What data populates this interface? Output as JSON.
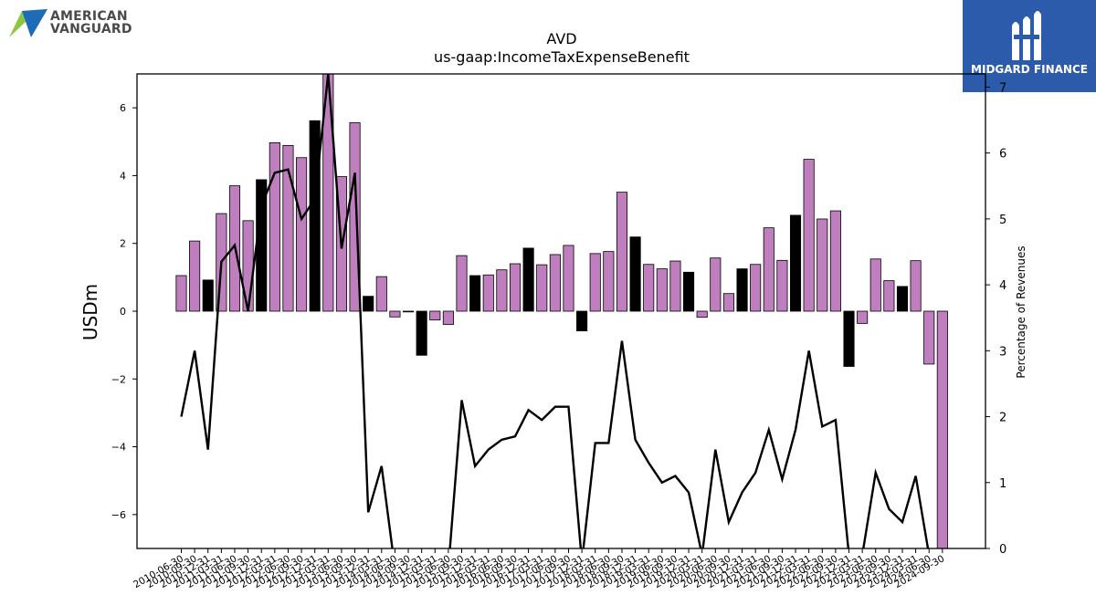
{
  "branding": {
    "company_logo_text_line1": "AMERICAN",
    "company_logo_text_line2": "VANGUARD",
    "publisher_logo_text": "MIDGARD FINANCE"
  },
  "chart_data": {
    "type": "bar",
    "title": "AVD",
    "subtitle": "us-gaap:IncomeTaxExpenseBenefit",
    "ylabel": "USDm",
    "y2label": "Percentage of Revenues",
    "ylim": [
      -7,
      7
    ],
    "y2lim": [
      0,
      7.2
    ],
    "yticks": [
      -6,
      -4,
      -2,
      0,
      2,
      4,
      6
    ],
    "y2ticks": [
      0,
      1,
      2,
      3,
      4,
      5,
      6,
      7
    ],
    "colors": {
      "quarter_bar": "#bf7fbf",
      "q4_bar": "#000000",
      "line": "#000000"
    },
    "categories": [
      "2010-06-30",
      "2010-09-30",
      "2010-12-31",
      "2011-03-31",
      "2011-06-30",
      "2011-09-30",
      "2011-12-31",
      "2012-03-31",
      "2012-06-30",
      "2012-09-30",
      "2012-12-31",
      "2013-03-31",
      "2013-06-30",
      "2013-09-30",
      "2013-12-31",
      "2014-03-31",
      "2014-06-30",
      "2014-09-30",
      "2014-12-31",
      "2015-03-31",
      "2015-06-30",
      "2015-09-30",
      "2015-12-31",
      "2016-03-31",
      "2016-06-30",
      "2016-09-30",
      "2016-12-31",
      "2017-03-31",
      "2017-06-30",
      "2017-09-30",
      "2017-12-31",
      "2018-03-31",
      "2018-06-30",
      "2018-09-30",
      "2018-12-31",
      "2019-03-31",
      "2019-06-30",
      "2019-09-30",
      "2019-12-31",
      "2020-03-31",
      "2020-06-30",
      "2020-09-30",
      "2020-12-31",
      "2021-03-31",
      "2021-06-30",
      "2021-09-30",
      "2021-12-31",
      "2022-03-31",
      "2022-06-30",
      "2022-09-30",
      "2022-12-31",
      "2023-03-31",
      "2023-06-30",
      "2023-09-30",
      "2023-12-31",
      "2024-03-31",
      "2024-06-30",
      "2024-09-30"
    ],
    "series": [
      {
        "kind": "bar",
        "values": [
          1.05,
          2.07,
          0.92,
          2.88,
          3.7,
          2.67,
          3.88,
          4.97,
          4.89,
          4.53,
          5.62,
          7.2,
          3.97,
          5.56,
          0.44,
          1.02,
          -0.17,
          -0.02,
          -1.3,
          -0.26,
          -0.39,
          1.64,
          1.05,
          1.07,
          1.22,
          1.4,
          1.86,
          1.37,
          1.67,
          1.94,
          -0.58,
          1.7,
          1.76,
          3.51,
          2.19,
          1.38,
          1.25,
          1.48,
          1.15,
          -0.18,
          1.57,
          0.52,
          1.25,
          1.38,
          2.46,
          1.5,
          2.83,
          4.48,
          2.72,
          2.96,
          -1.63,
          -0.36,
          1.54,
          0.9,
          0.73,
          1.49,
          -1.56,
          -7.2
        ],
        "q4": [
          false,
          false,
          true,
          false,
          false,
          false,
          true,
          false,
          false,
          false,
          true,
          false,
          false,
          false,
          true,
          false,
          false,
          false,
          true,
          false,
          false,
          false,
          true,
          false,
          false,
          false,
          true,
          false,
          false,
          false,
          true,
          false,
          false,
          false,
          true,
          false,
          false,
          false,
          true,
          false,
          false,
          false,
          true,
          false,
          false,
          false,
          true,
          false,
          false,
          false,
          true,
          false,
          false,
          false,
          true,
          false,
          false,
          false
        ]
      },
      {
        "kind": "line",
        "axis": "right",
        "values": [
          2.0,
          3.0,
          1.5,
          4.35,
          4.6,
          3.6,
          5.2,
          5.7,
          5.75,
          5.0,
          5.3,
          7.2,
          4.55,
          5.7,
          0.55,
          1.25,
          -0.3,
          -0.3,
          -0.3,
          -0.3,
          -0.3,
          2.25,
          1.25,
          1.5,
          1.65,
          1.7,
          2.1,
          1.95,
          2.15,
          2.15,
          -0.2,
          1.6,
          1.6,
          3.15,
          1.65,
          1.3,
          1.0,
          1.1,
          0.85,
          -0.1,
          1.5,
          0.4,
          0.85,
          1.15,
          1.8,
          1.05,
          1.8,
          3.0,
          1.85,
          1.95,
          -0.1,
          -0.1,
          1.15,
          0.6,
          0.4,
          1.1,
          -0.1,
          -0.1
        ]
      }
    ]
  }
}
